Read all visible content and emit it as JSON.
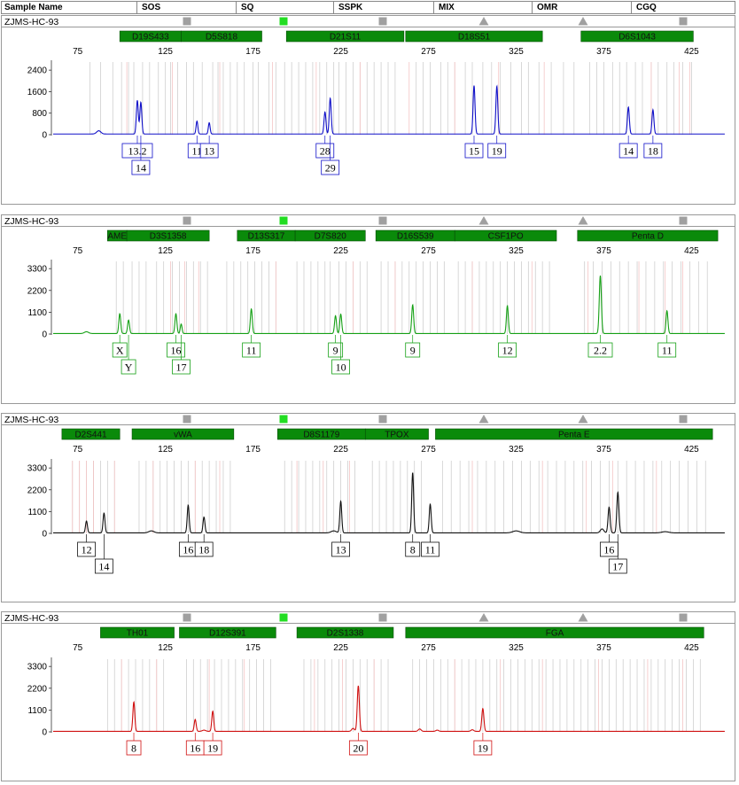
{
  "header": {
    "columns": [
      "Sample Name",
      "SOS",
      "SQ",
      "SSPK",
      "MIX",
      "OMR",
      "CGQ"
    ]
  },
  "colors": {
    "blue": "#1010c8",
    "green": "#15a015",
    "black": "#111111",
    "red": "#d01010",
    "marker_fill": "#0a8a0a",
    "grey_marker": "#a0a0a0",
    "green_marker": "#22dd22"
  },
  "chart_data": [
    {
      "type": "line",
      "title": "ZJMS-HC-93",
      "dye": "blue",
      "x_ticks": [
        75,
        125,
        175,
        225,
        275,
        325,
        375,
        425
      ],
      "y_ticks": [
        0,
        800,
        1600,
        2400
      ],
      "xlim": [
        60,
        445
      ],
      "ylim": [
        0,
        2800
      ],
      "markers": [
        {
          "name": "D19S433",
          "x1": 99,
          "x2": 134
        },
        {
          "name": "D5S818",
          "x1": 134,
          "x2": 180
        },
        {
          "name": "D21S11",
          "x1": 194,
          "x2": 261
        },
        {
          "name": "D18S51",
          "x1": 262,
          "x2": 340
        },
        {
          "name": "D6S1043",
          "x1": 362,
          "x2": 426
        }
      ],
      "peaks": [
        {
          "x": 87,
          "h": 120,
          "w": 1.2
        },
        {
          "x": 109,
          "h": 1250,
          "w": 0.55
        },
        {
          "x": 111,
          "h": 1180,
          "w": 0.55
        },
        {
          "x": 143,
          "h": 480,
          "w": 0.5
        },
        {
          "x": 150,
          "h": 420,
          "w": 0.5
        },
        {
          "x": 216,
          "h": 820,
          "w": 0.55
        },
        {
          "x": 219,
          "h": 1330,
          "w": 0.55
        },
        {
          "x": 301,
          "h": 1800,
          "w": 0.55
        },
        {
          "x": 314,
          "h": 1780,
          "w": 0.55
        },
        {
          "x": 389,
          "h": 1000,
          "w": 0.55
        },
        {
          "x": 403,
          "h": 900,
          "w": 0.55
        }
      ],
      "labels": [
        {
          "text": "13.2",
          "x": 109,
          "row": 1
        },
        {
          "text": "14",
          "x": 111,
          "row": 2
        },
        {
          "text": "11",
          "x": 143,
          "row": 1
        },
        {
          "text": "13",
          "x": 150,
          "row": 1
        },
        {
          "text": "28",
          "x": 216,
          "row": 1
        },
        {
          "text": "29",
          "x": 219,
          "row": 2
        },
        {
          "text": "15",
          "x": 301,
          "row": 1
        },
        {
          "text": "19",
          "x": 314,
          "row": 1
        },
        {
          "text": "14",
          "x": 389,
          "row": 1
        },
        {
          "text": "18",
          "x": 403,
          "row": 1
        }
      ],
      "bins_grey": [
        82,
        88,
        95,
        100,
        104,
        107,
        112,
        116,
        121,
        125,
        128,
        132,
        137,
        141,
        146,
        152,
        155,
        158,
        162,
        166,
        170,
        175,
        178,
        184,
        188,
        193,
        197,
        201,
        205,
        209,
        213,
        217,
        221,
        224,
        228,
        232,
        236,
        240,
        244,
        248,
        252,
        256,
        268,
        272,
        276,
        282,
        286,
        290,
        296,
        300,
        306,
        311,
        316,
        322,
        328,
        332,
        338,
        345,
        352,
        358,
        367,
        371,
        375,
        380,
        384,
        388,
        393,
        397,
        402,
        406,
        411,
        415,
        420,
        425
      ],
      "bins_pink": [
        103,
        129,
        156,
        186,
        211,
        236,
        264,
        290,
        315,
        341,
        402,
        418,
        424
      ]
    },
    {
      "type": "line",
      "title": "ZJMS-HC-93",
      "dye": "green",
      "x_ticks": [
        75,
        125,
        175,
        225,
        275,
        325,
        375,
        425
      ],
      "y_ticks": [
        0,
        1100,
        2200,
        3300
      ],
      "xlim": [
        60,
        445
      ],
      "ylim": [
        0,
        3800
      ],
      "markers": [
        {
          "name": "AME",
          "x1": 92,
          "x2": 103
        },
        {
          "name": "D3S1358",
          "x1": 103,
          "x2": 150
        },
        {
          "name": "D13S317",
          "x1": 166,
          "x2": 199
        },
        {
          "name": "D7S820",
          "x1": 199,
          "x2": 239
        },
        {
          "name": "D16S539",
          "x1": 245,
          "x2": 290
        },
        {
          "name": "CSF1PO",
          "x1": 290,
          "x2": 348
        },
        {
          "name": "Penta D",
          "x1": 360,
          "x2": 440
        }
      ],
      "peaks": [
        {
          "x": 80,
          "h": 90,
          "w": 1.2
        },
        {
          "x": 99,
          "h": 1000,
          "w": 0.55
        },
        {
          "x": 104,
          "h": 680,
          "w": 0.55
        },
        {
          "x": 131,
          "h": 1000,
          "w": 0.55
        },
        {
          "x": 134,
          "h": 480,
          "w": 0.5
        },
        {
          "x": 174,
          "h": 1240,
          "w": 0.55
        },
        {
          "x": 222,
          "h": 900,
          "w": 0.55
        },
        {
          "x": 225,
          "h": 980,
          "w": 0.55
        },
        {
          "x": 266,
          "h": 1450,
          "w": 0.55
        },
        {
          "x": 320,
          "h": 1400,
          "w": 0.55
        },
        {
          "x": 373,
          "h": 2920,
          "w": 0.6
        },
        {
          "x": 411,
          "h": 1150,
          "w": 0.55
        }
      ],
      "labels": [
        {
          "text": "X",
          "x": 99,
          "row": 1
        },
        {
          "text": "Y",
          "x": 104,
          "row": 2
        },
        {
          "text": "16",
          "x": 131,
          "row": 1
        },
        {
          "text": "17",
          "x": 134,
          "row": 2
        },
        {
          "text": "11",
          "x": 174,
          "row": 1
        },
        {
          "text": "9",
          "x": 222,
          "row": 1
        },
        {
          "text": "10",
          "x": 225,
          "row": 2
        },
        {
          "text": "9",
          "x": 266,
          "row": 1
        },
        {
          "text": "12",
          "x": 320,
          "row": 1
        },
        {
          "text": "2.2",
          "x": 373,
          "row": 1
        },
        {
          "text": "11",
          "x": 411,
          "row": 1
        }
      ],
      "bins_grey": [
        97,
        101,
        106,
        110,
        114,
        120,
        124,
        129,
        133,
        137,
        141,
        145,
        149,
        160,
        164,
        168,
        172,
        176,
        180,
        184,
        188,
        200,
        204,
        208,
        212,
        216,
        219,
        224,
        228,
        232,
        236,
        240,
        248,
        252,
        256,
        260,
        264,
        268,
        272,
        276,
        280,
        284,
        292,
        296,
        300,
        304,
        308,
        312,
        316,
        320,
        324,
        328,
        332,
        336,
        340,
        344,
        364,
        369,
        374,
        379,
        384,
        389,
        394,
        399,
        404,
        409,
        414,
        419,
        424,
        429,
        434
      ],
      "bins_pink": [
        128,
        136,
        144,
        188,
        232,
        256,
        300,
        334,
        366,
        395,
        410,
        420
      ]
    },
    {
      "type": "line",
      "title": "ZJMS-HC-93",
      "dye": "black",
      "x_ticks": [
        75,
        125,
        175,
        225,
        275,
        325,
        375,
        425
      ],
      "y_ticks": [
        0,
        1100,
        2200,
        3300
      ],
      "xlim": [
        60,
        445
      ],
      "ylim": [
        0,
        3800
      ],
      "markers": [
        {
          "name": "D2S441",
          "x1": 66,
          "x2": 99
        },
        {
          "name": "vWA",
          "x1": 106,
          "x2": 164
        },
        {
          "name": "D8S1179",
          "x1": 189,
          "x2": 239
        },
        {
          "name": "TPOX",
          "x1": 239,
          "x2": 275
        },
        {
          "name": "Penta E",
          "x1": 279,
          "x2": 437
        }
      ],
      "peaks": [
        {
          "x": 80,
          "h": 600,
          "w": 0.55
        },
        {
          "x": 90,
          "h": 1000,
          "w": 0.55
        },
        {
          "x": 117,
          "h": 100,
          "w": 1.5
        },
        {
          "x": 138,
          "h": 1400,
          "w": 0.55
        },
        {
          "x": 147,
          "h": 800,
          "w": 0.55
        },
        {
          "x": 221,
          "h": 100,
          "w": 1.5
        },
        {
          "x": 225,
          "h": 1600,
          "w": 0.55
        },
        {
          "x": 266,
          "h": 3050,
          "w": 0.55
        },
        {
          "x": 276,
          "h": 1450,
          "w": 0.55
        },
        {
          "x": 325,
          "h": 100,
          "w": 2
        },
        {
          "x": 374,
          "h": 200,
          "w": 1
        },
        {
          "x": 378,
          "h": 1300,
          "w": 0.6
        },
        {
          "x": 383,
          "h": 2050,
          "w": 0.6
        },
        {
          "x": 410,
          "h": 60,
          "w": 2
        }
      ],
      "labels": [
        {
          "text": "12",
          "x": 80,
          "row": 1
        },
        {
          "text": "14",
          "x": 90,
          "row": 2
        },
        {
          "text": "16",
          "x": 138,
          "row": 1
        },
        {
          "text": "18",
          "x": 147,
          "row": 1
        },
        {
          "text": "13",
          "x": 225,
          "row": 1
        },
        {
          "text": "8",
          "x": 266,
          "row": 1
        },
        {
          "text": "11",
          "x": 276,
          "row": 1
        },
        {
          "text": "16",
          "x": 378,
          "row": 1
        },
        {
          "text": "17",
          "x": 383,
          "row": 2
        }
      ],
      "bins_grey": [
        72,
        76,
        80,
        84,
        88,
        92,
        96,
        110,
        114,
        118,
        122,
        126,
        130,
        134,
        138,
        142,
        146,
        150,
        154,
        158,
        162,
        193,
        197,
        201,
        205,
        209,
        213,
        217,
        221,
        225,
        229,
        233,
        243,
        247,
        251,
        255,
        259,
        263,
        267,
        271,
        283,
        288,
        293,
        298,
        303,
        308,
        313,
        318,
        323,
        328,
        333,
        338,
        343,
        348,
        353,
        358,
        363,
        368,
        373,
        378,
        383,
        388,
        393,
        398,
        403,
        408,
        413,
        418,
        423,
        428,
        433
      ],
      "bins_pink": [
        72,
        76,
        80,
        84,
        96,
        118,
        142,
        156,
        200,
        215,
        230,
        300,
        340,
        365,
        380,
        405
      ]
    },
    {
      "type": "line",
      "title": "ZJMS-HC-93",
      "dye": "red",
      "x_ticks": [
        75,
        125,
        175,
        225,
        275,
        325,
        375,
        425
      ],
      "y_ticks": [
        0,
        1100,
        2200,
        3300
      ],
      "xlim": [
        60,
        445
      ],
      "ylim": [
        0,
        3800
      ],
      "markers": [
        {
          "name": "TH01",
          "x1": 88,
          "x2": 130
        },
        {
          "name": "D12S391",
          "x1": 133,
          "x2": 188
        },
        {
          "name": "D2S1338",
          "x1": 200,
          "x2": 255
        },
        {
          "name": "FGA",
          "x1": 262,
          "x2": 432
        }
      ],
      "peaks": [
        {
          "x": 107,
          "h": 1480,
          "w": 0.55
        },
        {
          "x": 142,
          "h": 600,
          "w": 0.55
        },
        {
          "x": 152,
          "h": 1020,
          "w": 0.55
        },
        {
          "x": 147,
          "h": 60,
          "w": 1
        },
        {
          "x": 232,
          "h": 150,
          "w": 0.8
        },
        {
          "x": 235,
          "h": 2300,
          "w": 0.6
        },
        {
          "x": 270,
          "h": 120,
          "w": 0.8
        },
        {
          "x": 280,
          "h": 60,
          "w": 0.8
        },
        {
          "x": 300,
          "h": 80,
          "w": 0.8
        },
        {
          "x": 306,
          "h": 1150,
          "w": 0.6
        }
      ],
      "labels": [
        {
          "text": "8",
          "x": 107,
          "row": 1
        },
        {
          "text": "16",
          "x": 142,
          "row": 1
        },
        {
          "text": "19",
          "x": 152,
          "row": 1
        },
        {
          "text": "20",
          "x": 235,
          "row": 1
        },
        {
          "text": "19",
          "x": 306,
          "row": 1
        }
      ],
      "bins_grey": [
        92,
        96,
        100,
        104,
        108,
        112,
        116,
        120,
        124,
        137,
        141,
        145,
        149,
        153,
        157,
        161,
        165,
        169,
        173,
        177,
        181,
        185,
        204,
        208,
        212,
        216,
        220,
        224,
        228,
        232,
        236,
        240,
        244,
        248,
        252,
        266,
        270,
        274,
        278,
        282,
        286,
        290,
        294,
        298,
        302,
        306,
        310,
        314,
        318,
        322,
        326,
        330,
        334,
        338,
        342,
        346,
        350,
        354,
        358,
        362,
        366,
        370,
        374,
        378,
        382,
        386,
        390,
        394,
        398,
        402,
        406,
        410,
        414,
        418,
        422,
        426,
        430
      ],
      "bins_pink": [
        100,
        120,
        150,
        170,
        210,
        226,
        244,
        290,
        316,
        340,
        372,
        400,
        420
      ]
    }
  ]
}
